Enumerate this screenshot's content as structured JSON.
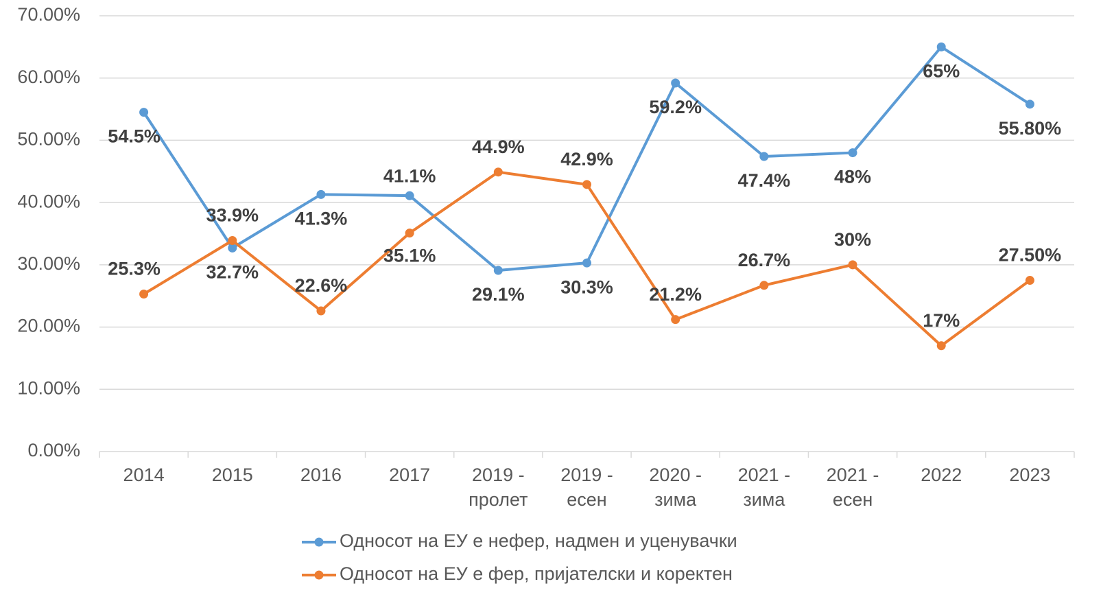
{
  "chart_data": {
    "type": "line",
    "categories": [
      "2014",
      "2015",
      "2016",
      "2017",
      "2019 - пролет",
      "2019 - есен",
      "2020 - зима",
      "2021 - зима",
      "2021 - есен",
      "2022",
      "2023"
    ],
    "series": [
      {
        "name": "Односот на ЕУ е нефер, надмен и уценувачки",
        "color": "#5b9bd5",
        "values": [
          54.5,
          32.7,
          41.3,
          41.1,
          29.1,
          30.3,
          59.2,
          47.4,
          48,
          65,
          55.8
        ],
        "value_labels": [
          "54.5%",
          "32.7%",
          "41.3%",
          "41.1%",
          "29.1%",
          "30.3%",
          "59.2%",
          "47.4%",
          "48%",
          "65%",
          "55.80%"
        ]
      },
      {
        "name": "Односот на ЕУ е фер, пријателски и коректен",
        "color": "#ed7d31",
        "values": [
          25.3,
          33.9,
          22.6,
          35.1,
          44.9,
          42.9,
          21.2,
          26.7,
          30,
          17,
          27.5
        ],
        "value_labels": [
          "25.3%",
          "33.9%",
          "22.6%",
          "35.1%",
          "44.9%",
          "42.9%",
          "21.2%",
          "26.7%",
          "30%",
          "17%",
          "27.50%"
        ]
      }
    ],
    "ylim": [
      0,
      70
    ],
    "yticks": [
      {
        "value": 0,
        "label": "0.00%"
      },
      {
        "value": 10,
        "label": "10.00%"
      },
      {
        "value": 20,
        "label": "20.00%"
      },
      {
        "value": 30,
        "label": "30.00%"
      },
      {
        "value": 40,
        "label": "40.00%"
      },
      {
        "value": 50,
        "label": "50.00%"
      },
      {
        "value": 60,
        "label": "60.00%"
      },
      {
        "value": 70,
        "label": "70.00%"
      }
    ],
    "grid": true,
    "legend": "bottom"
  }
}
